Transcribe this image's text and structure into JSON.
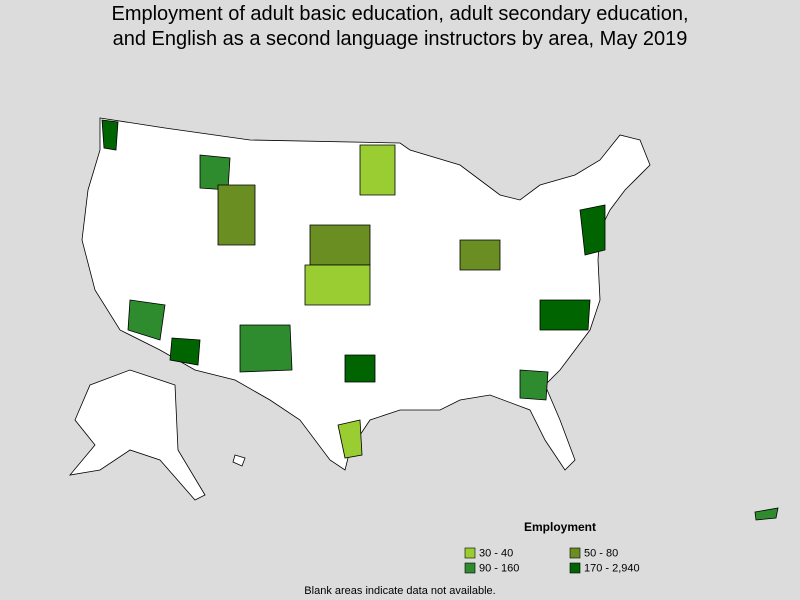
{
  "title_lines": [
    "Employment of adult basic education, adult secondary education,",
    "and English as a second language instructors by area, May 2019"
  ],
  "legend": {
    "title": "Employment",
    "items": [
      {
        "label": "30 - 40",
        "color": "#9acd32"
      },
      {
        "label": "50 - 80",
        "color": "#6b8e23"
      },
      {
        "label": "90 - 160",
        "color": "#2e8b2e"
      },
      {
        "label": "170 - 2,940",
        "color": "#006400"
      }
    ]
  },
  "footnote": "Blank areas indicate data not available."
}
